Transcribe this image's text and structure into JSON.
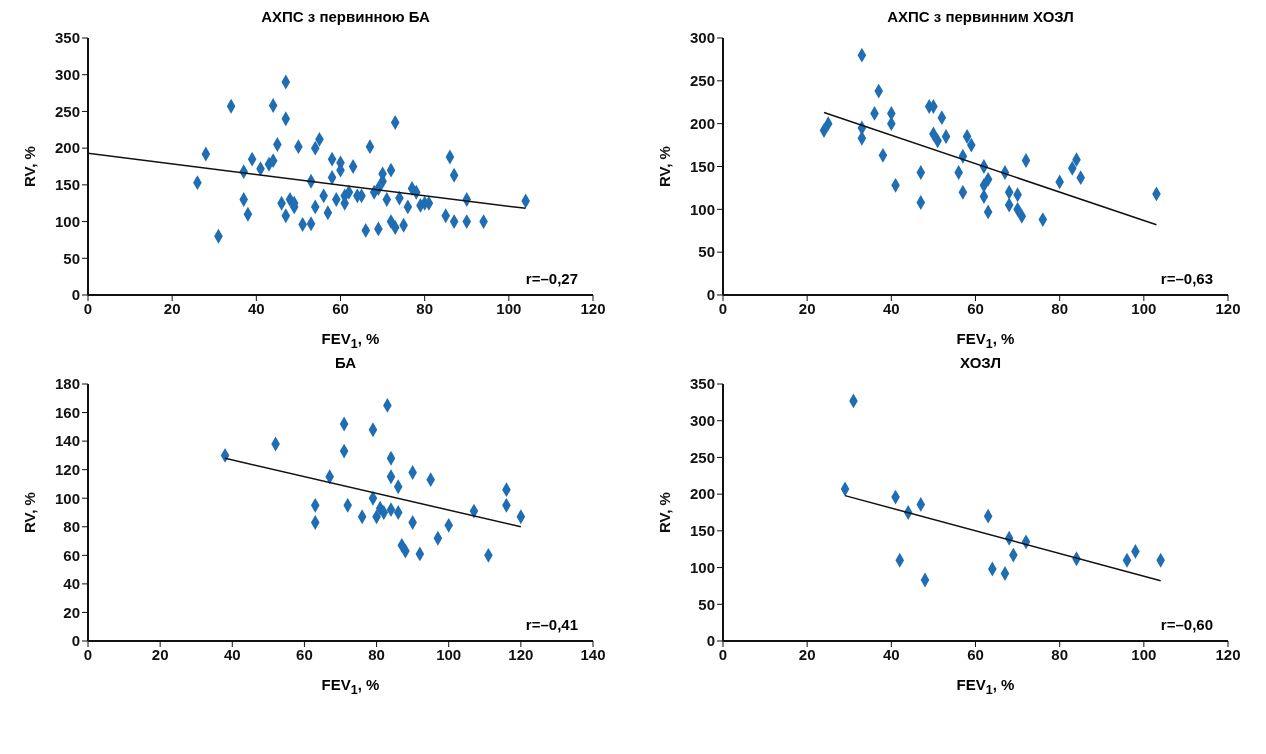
{
  "chart_data": [
    {
      "type": "scatter",
      "title": "АХПС з первинною БА",
      "xlabel": "FEV$_{1}$, %",
      "ylabel": "RV, %",
      "xlim": [
        0,
        120
      ],
      "xticks": [
        0,
        20,
        40,
        60,
        80,
        100,
        120
      ],
      "ylim": [
        0,
        350
      ],
      "yticks": [
        0,
        50,
        100,
        150,
        200,
        250,
        300,
        350
      ],
      "marker": "diamond",
      "annotations": [
        "r=–0,27"
      ],
      "series": [
        {
          "color": "#1f6db3",
          "x": [
            26,
            28,
            31,
            34,
            37,
            37,
            38,
            39,
            41,
            43,
            44,
            44,
            45,
            46,
            47,
            47,
            47,
            48,
            49,
            49,
            50,
            51,
            53,
            53,
            54,
            54,
            55,
            56,
            57,
            58,
            58,
            59,
            60,
            60,
            61,
            61,
            62,
            63,
            64,
            65,
            66,
            67,
            68,
            69,
            69,
            70,
            70,
            71,
            72,
            72,
            73,
            73,
            74,
            75,
            76,
            77,
            78,
            79,
            80,
            81,
            85,
            86,
            87,
            87,
            90,
            90,
            94,
            104
          ],
          "values": [
            153,
            192,
            80,
            257,
            168,
            130,
            110,
            185,
            172,
            178,
            258,
            183,
            205,
            125,
            290,
            240,
            108,
            130,
            120,
            125,
            202,
            96,
            97,
            155,
            120,
            200,
            212,
            135,
            112,
            160,
            185,
            130,
            180,
            170,
            135,
            125,
            140,
            175,
            135,
            135,
            88,
            202,
            140,
            90,
            145,
            165,
            155,
            130,
            170,
            100,
            92,
            235,
            132,
            95,
            120,
            145,
            140,
            122,
            125,
            125,
            108,
            188,
            163,
            100,
            130,
            100,
            100,
            128
          ]
        },
        {
          "type": "line",
          "color": "#111111",
          "marker": "none",
          "x": [
            0,
            104
          ],
          "values": [
            193,
            118
          ]
        }
      ]
    },
    {
      "type": "scatter",
      "title": "АХПС з первинним ХОЗЛ",
      "xlabel": "FEV$_{1}$, %",
      "ylabel": "RV, %",
      "xlim": [
        0,
        120
      ],
      "xticks": [
        0,
        20,
        40,
        60,
        80,
        100,
        120
      ],
      "ylim": [
        0,
        300
      ],
      "yticks": [
        0,
        50,
        100,
        150,
        200,
        250,
        300
      ],
      "marker": "diamond",
      "annotations": [
        "r=–0,63"
      ],
      "series": [
        {
          "color": "#1f6db3",
          "x": [
            24,
            25,
            33,
            33,
            33,
            36,
            37,
            38,
            40,
            40,
            41,
            47,
            47,
            49,
            50,
            50,
            51,
            52,
            53,
            56,
            57,
            57,
            58,
            59,
            62,
            62,
            62,
            63,
            63,
            67,
            68,
            68,
            70,
            70,
            71,
            72,
            76,
            80,
            83,
            84,
            85,
            103
          ],
          "values": [
            192,
            200,
            280,
            195,
            183,
            212,
            238,
            163,
            212,
            200,
            128,
            143,
            108,
            220,
            220,
            188,
            180,
            207,
            185,
            143,
            120,
            162,
            185,
            175,
            150,
            115,
            128,
            135,
            97,
            143,
            105,
            120,
            117,
            100,
            92,
            157,
            88,
            132,
            148,
            158,
            137,
            118
          ]
        },
        {
          "type": "line",
          "color": "#111111",
          "marker": "none",
          "x": [
            24,
            103
          ],
          "values": [
            213,
            82
          ]
        }
      ]
    },
    {
      "type": "scatter",
      "title": "БА",
      "xlabel": "FEV$_{1}$, %",
      "ylabel": "RV, %",
      "xlim": [
        0,
        140
      ],
      "xticks": [
        0,
        20,
        40,
        60,
        80,
        100,
        120,
        140
      ],
      "ylim": [
        0,
        180
      ],
      "yticks": [
        0,
        20,
        40,
        60,
        80,
        100,
        120,
        140,
        160,
        180
      ],
      "marker": "diamond",
      "annotations": [
        "r=–0,41"
      ],
      "series": [
        {
          "color": "#1f6db3",
          "x": [
            38,
            52,
            63,
            63,
            67,
            71,
            71,
            72,
            76,
            79,
            79,
            80,
            81,
            82,
            83,
            84,
            84,
            84,
            86,
            86,
            87,
            88,
            90,
            90,
            92,
            95,
            97,
            100,
            107,
            111,
            116,
            116,
            120
          ],
          "values": [
            130,
            138,
            95,
            83,
            115,
            152,
            133,
            95,
            87,
            148,
            100,
            87,
            93,
            90,
            165,
            128,
            115,
            92,
            108,
            90,
            67,
            63,
            118,
            83,
            61,
            113,
            72,
            81,
            91,
            60,
            106,
            95,
            87
          ]
        },
        {
          "type": "line",
          "color": "#111111",
          "marker": "none",
          "x": [
            38,
            120
          ],
          "values": [
            128,
            80
          ]
        }
      ]
    },
    {
      "type": "scatter",
      "title": "ХОЗЛ",
      "xlabel": "FEV$_{1}$, %",
      "ylabel": "RV, %",
      "xlim": [
        0,
        120
      ],
      "xticks": [
        0,
        20,
        40,
        60,
        80,
        100,
        120
      ],
      "ylim": [
        0,
        350
      ],
      "yticks": [
        0,
        50,
        100,
        150,
        200,
        250,
        300,
        350
      ],
      "marker": "diamond",
      "annotations": [
        "r=–0,60"
      ],
      "series": [
        {
          "color": "#1f6db3",
          "x": [
            29,
            31,
            41,
            42,
            44,
            47,
            48,
            63,
            64,
            67,
            68,
            69,
            72,
            84,
            96,
            98,
            104
          ],
          "values": [
            207,
            327,
            196,
            110,
            175,
            186,
            83,
            170,
            98,
            92,
            140,
            117,
            135,
            112,
            110,
            122,
            110
          ]
        },
        {
          "type": "line",
          "color": "#111111",
          "marker": "none",
          "x": [
            29,
            104
          ],
          "values": [
            198,
            82
          ]
        }
      ]
    }
  ]
}
